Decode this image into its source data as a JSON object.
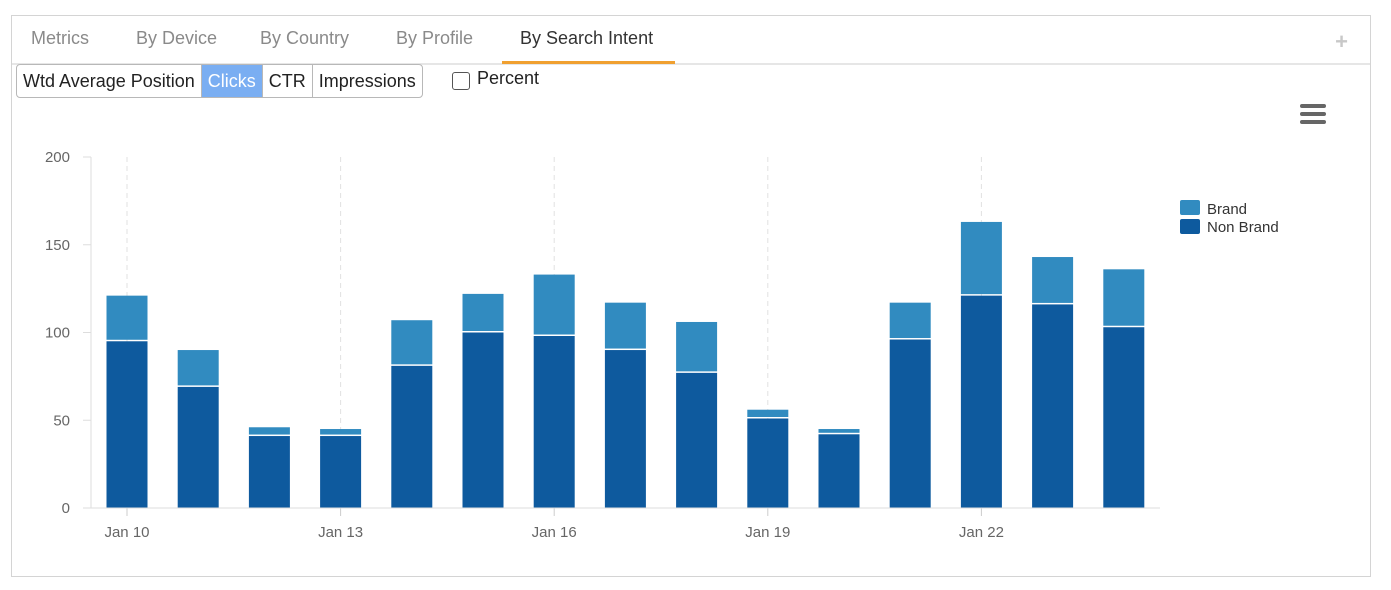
{
  "tabs": [
    {
      "label": "Metrics"
    },
    {
      "label": "By Device"
    },
    {
      "label": "By Country"
    },
    {
      "label": "By Profile"
    },
    {
      "label": "By Search Intent",
      "active": true
    }
  ],
  "tab_add_icon": "+",
  "metric_buttons": [
    {
      "label": "Wtd Average Position"
    },
    {
      "label": "Clicks",
      "active": true
    },
    {
      "label": "CTR"
    },
    {
      "label": "Impressions"
    }
  ],
  "percent_toggle": {
    "label": "Percent",
    "checked": false
  },
  "menu_icon": "hamburger-icon",
  "colors": {
    "brand": "#318bc0",
    "non_brand": "#0e5a9e",
    "accent": "#f0a030",
    "active_button": "#7aaef2"
  },
  "chart_data": {
    "type": "bar",
    "stacked": true,
    "categories": [
      "Jan 10",
      "Jan 11",
      "Jan 12",
      "Jan 13",
      "Jan 14",
      "Jan 15",
      "Jan 16",
      "Jan 17",
      "Jan 18",
      "Jan 19",
      "Jan 20",
      "Jan 21",
      "Jan 22",
      "Jan 23",
      "Jan 24"
    ],
    "x_tick_labels": [
      "Jan 10",
      "Jan 13",
      "Jan 16",
      "Jan 19",
      "Jan 22"
    ],
    "series": [
      {
        "name": "Non Brand",
        "values": [
          95,
          69,
          41,
          41,
          81,
          100,
          98,
          90,
          77,
          51,
          42,
          96,
          121,
          116,
          103
        ]
      },
      {
        "name": "Brand",
        "values": [
          26,
          21,
          5,
          4,
          26,
          22,
          35,
          27,
          29,
          5,
          3,
          21,
          42,
          27,
          33
        ]
      }
    ],
    "legend": [
      "Brand",
      "Non Brand"
    ],
    "ylim": [
      0,
      200
    ],
    "y_ticks": [
      0,
      50,
      100,
      150,
      200
    ],
    "title": "",
    "xlabel": "",
    "ylabel": ""
  }
}
